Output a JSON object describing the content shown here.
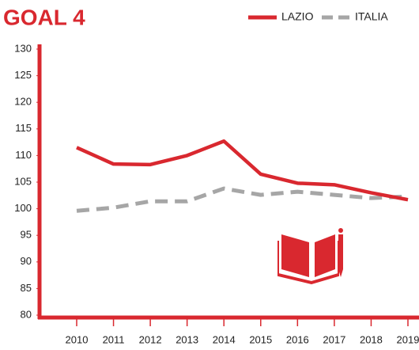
{
  "chart_data": {
    "type": "line",
    "title": "GOAL 4",
    "categories": [
      "2010",
      "2011",
      "2012",
      "2013",
      "2014",
      "2015",
      "2016",
      "2017",
      "2018",
      "2019"
    ],
    "series": [
      {
        "name": "LAZIO",
        "color": "#d9282f",
        "dash": false,
        "values": [
          111.5,
          108.4,
          108.3,
          110,
          112.7,
          106.5,
          104.8,
          104.5,
          103,
          101.7
        ]
      },
      {
        "name": "ITALIA",
        "color": "#a6a6a6",
        "dash": true,
        "values": [
          99.6,
          100.2,
          101.4,
          101.4,
          103.8,
          102.6,
          103.2,
          102.6,
          102,
          102.3
        ]
      }
    ],
    "ylim": [
      80,
      130
    ],
    "yticks": [
      80,
      85,
      90,
      95,
      100,
      105,
      110,
      115,
      120,
      125,
      130
    ],
    "grid": false
  }
}
